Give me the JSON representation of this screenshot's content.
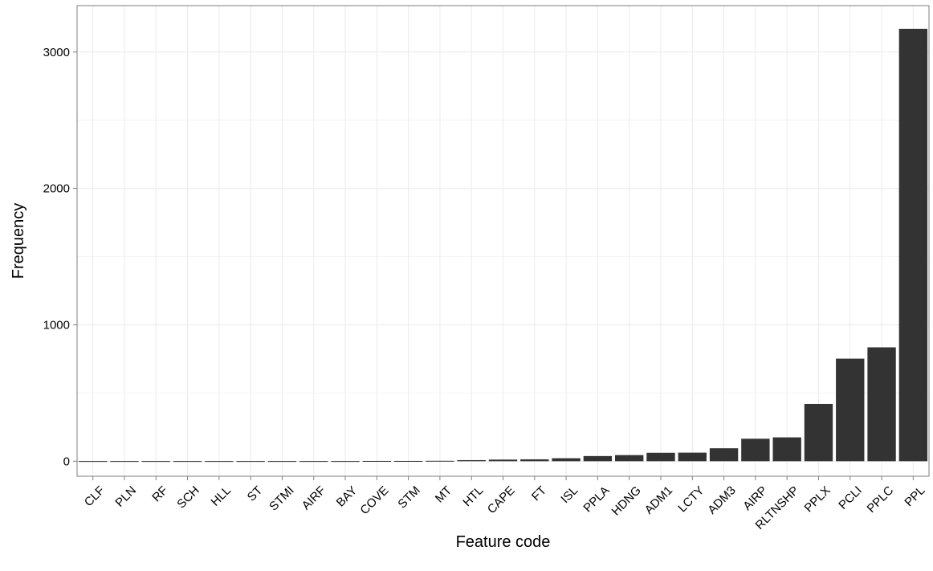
{
  "chart_data": {
    "type": "bar",
    "xlabel": "Feature code",
    "ylabel": "Frequency",
    "categories": [
      "CLF",
      "PLN",
      "RF",
      "SCH",
      "HLL",
      "ST",
      "STMI",
      "AIRF",
      "BAY",
      "COVE",
      "STM",
      "MT",
      "HTL",
      "CAPE",
      "FT",
      "ISL",
      "PPLA",
      "HDNG",
      "ADM1",
      "LCTY",
      "ADM3",
      "AIRP",
      "RLTNSHP",
      "PPLX",
      "PCLI",
      "PPLC",
      "PPL"
    ],
    "values": [
      1,
      1,
      1,
      1,
      1,
      1,
      1,
      1,
      1,
      2,
      2,
      3,
      8,
      12,
      14,
      22,
      38,
      45,
      62,
      63,
      95,
      165,
      175,
      420,
      752,
      835,
      3170
    ],
    "ylim": [
      -110,
      3340
    ],
    "yticks": [
      0,
      1000,
      2000,
      3000
    ],
    "grid": true,
    "bar_color": "#333333",
    "grid_major_color": "#ebebeb",
    "grid_minor_color": "#f5f5f5",
    "panel_border_color": "#7f7f7f"
  }
}
